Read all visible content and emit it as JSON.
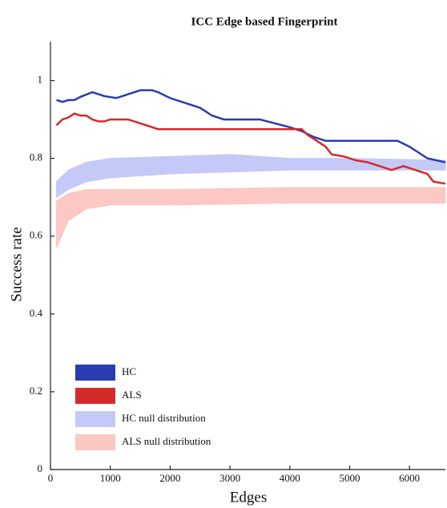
{
  "chart_data": {
    "type": "line",
    "title": "ICC Edge based Fingerprint",
    "x_label": "Edges",
    "y_label": "Success rate",
    "xlim": [
      0,
      6600
    ],
    "ylim": [
      0,
      1.1
    ],
    "xticks": [
      0,
      1000,
      2000,
      3000,
      4000,
      5000,
      6000
    ],
    "yticks": [
      0,
      0.2,
      0.4,
      0.6,
      0.8,
      1
    ],
    "legend": "lower-left",
    "bands": [
      {
        "name": "HC null distribution",
        "color": "#c5c9f7",
        "x": [
          100,
          300,
          600,
          1000,
          2000,
          3000,
          4000,
          5000,
          6600
        ],
        "low": [
          0.7,
          0.72,
          0.74,
          0.75,
          0.76,
          0.765,
          0.77,
          0.77,
          0.77
        ],
        "high": [
          0.74,
          0.77,
          0.79,
          0.8,
          0.805,
          0.81,
          0.8,
          0.8,
          0.795
        ]
      },
      {
        "name": "ALS null distribution",
        "color": "#fcc8c4",
        "x": [
          100,
          300,
          600,
          1000,
          2000,
          4000,
          6600
        ],
        "low": [
          0.57,
          0.64,
          0.67,
          0.68,
          0.68,
          0.685,
          0.685
        ],
        "high": [
          0.69,
          0.71,
          0.72,
          0.72,
          0.72,
          0.725,
          0.725
        ]
      }
    ],
    "series": [
      {
        "name": "HC",
        "color": "#2b3bb0",
        "x": [
          100,
          200,
          300,
          400,
          500,
          700,
          900,
          1100,
          1300,
          1500,
          1700,
          1800,
          2000,
          2500,
          2700,
          2900,
          3500,
          4000,
          4200,
          4400,
          4600,
          5800,
          6000,
          6300,
          6600
        ],
        "values": [
          0.95,
          0.945,
          0.95,
          0.95,
          0.958,
          0.97,
          0.96,
          0.955,
          0.965,
          0.975,
          0.975,
          0.97,
          0.955,
          0.93,
          0.91,
          0.9,
          0.9,
          0.88,
          0.87,
          0.855,
          0.845,
          0.845,
          0.83,
          0.8,
          0.79
        ]
      },
      {
        "name": "ALS",
        "color": "#d42a2a",
        "x": [
          100,
          200,
          300,
          400,
          500,
          600,
          700,
          800,
          900,
          1000,
          1300,
          1500,
          1800,
          4200,
          4300,
          4500,
          4600,
          4700,
          4900,
          5100,
          5300,
          5500,
          5700,
          5900,
          6100,
          6200,
          6300,
          6400,
          6600
        ],
        "values": [
          0.885,
          0.9,
          0.905,
          0.915,
          0.91,
          0.91,
          0.9,
          0.895,
          0.895,
          0.9,
          0.9,
          0.89,
          0.875,
          0.875,
          0.86,
          0.84,
          0.83,
          0.81,
          0.805,
          0.795,
          0.79,
          0.78,
          0.77,
          0.78,
          0.77,
          0.765,
          0.76,
          0.74,
          0.735
        ]
      }
    ]
  }
}
